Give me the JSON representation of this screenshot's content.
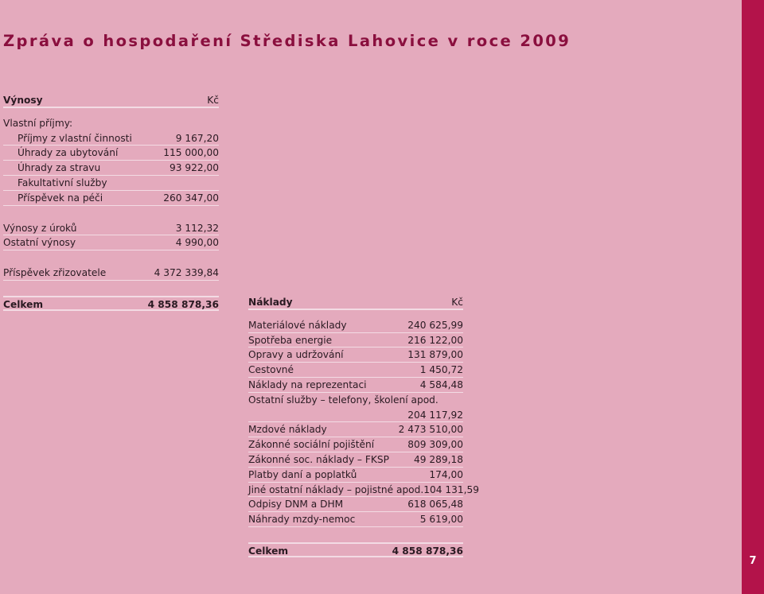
{
  "title": "Zpráva o hospodaření Střediska Lahovice v roce 2009",
  "page_number": "7",
  "colors": {
    "background": "#e4aabd",
    "accent_bar": "#b3134a",
    "title": "#8a0f3e",
    "rule": "#f3dbe4"
  },
  "income": {
    "heading": "Výnosy",
    "unit": "Kč",
    "own_income_label": "Vlastní příjmy:",
    "own_items": [
      {
        "label": "Příjmy z vlastní činnosti",
        "value": "9 167,20"
      },
      {
        "label": "Úhrady za ubytování",
        "value": "115 000,00"
      },
      {
        "label": "Úhrady za stravu",
        "value": "93 922,00"
      },
      {
        "label": "Fakultativní služby",
        "value": ""
      },
      {
        "label": "Příspěvek na péči",
        "value": "260 347,00"
      }
    ],
    "other_items": [
      {
        "label": "Výnosy z úroků",
        "value": "3 112,32"
      },
      {
        "label": "Ostatní výnosy",
        "value": "4 990,00"
      }
    ],
    "founder": {
      "label": "Příspěvek zřizovatele",
      "value": "4 372 339,84"
    },
    "total": {
      "label": "Celkem",
      "value": "4 858 878,36"
    }
  },
  "costs": {
    "heading": "Náklady",
    "unit": "Kč",
    "items_a": [
      {
        "label": "Materiálové náklady",
        "value": "240 625,99"
      },
      {
        "label": "Spotřeba energie",
        "value": "216 122,00"
      },
      {
        "label": "Opravy a udržování",
        "value": "131 879,00"
      },
      {
        "label": "Cestovné",
        "value": "1 450,72"
      },
      {
        "label": "Náklady na reprezentaci",
        "value": "4 584,48"
      }
    ],
    "services": {
      "label": "Ostatní služby – telefony, školení apod.",
      "value": "204 117,92"
    },
    "items_b": [
      {
        "label": "Mzdové náklady",
        "value": "2 473 510,00"
      },
      {
        "label": "Zákonné sociální pojištění",
        "value": "809 309,00"
      },
      {
        "label": "Zákonné soc. náklady – FKSP",
        "value": "49 289,18"
      },
      {
        "label": "Platby daní a poplatků",
        "value": "174,00"
      },
      {
        "label": "Jiné ostatní náklady – pojistné apod.",
        "value": "104 131,59"
      },
      {
        "label": "Odpisy DNM a DHM",
        "value": "618 065,48"
      },
      {
        "label": "Náhrady mzdy-nemoc",
        "value": "5 619,00"
      }
    ],
    "total": {
      "label": "Celkem",
      "value": "4 858 878,36"
    }
  }
}
